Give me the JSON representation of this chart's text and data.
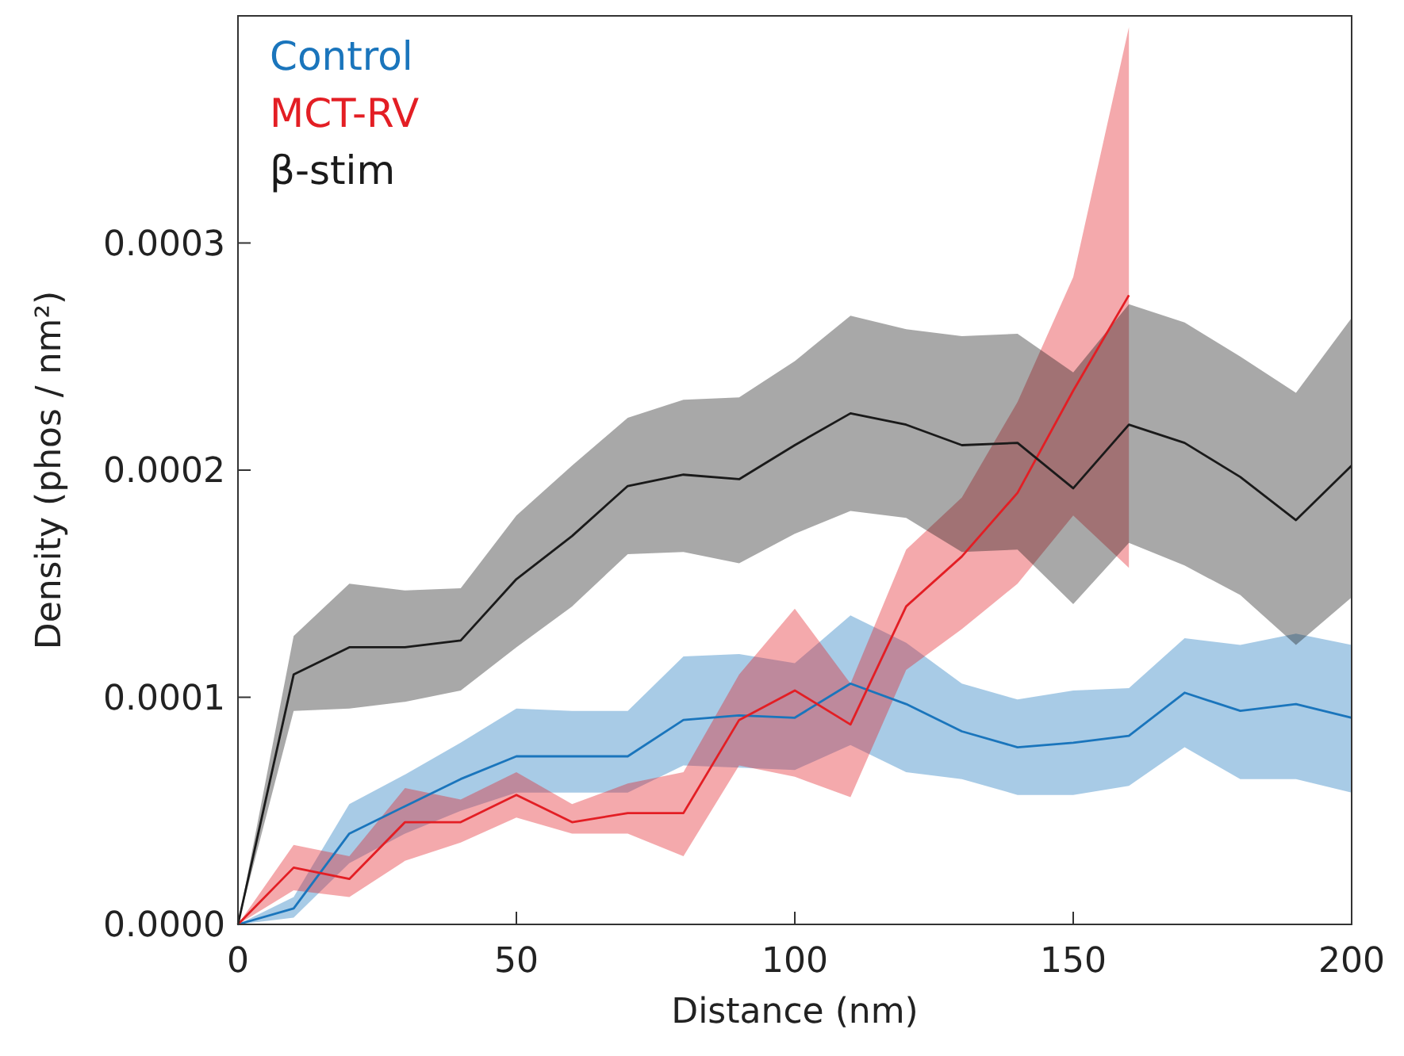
{
  "chart_data": {
    "type": "line",
    "xlabel": "Distance (nm)",
    "ylabel": "Density (phos / nm²)",
    "xlim": [
      0,
      200
    ],
    "xticks": [
      0,
      50,
      100,
      150,
      200
    ],
    "ylim": [
      0,
      0.0004
    ],
    "yticks": [
      {
        "value": 0,
        "label": "0.0000"
      },
      {
        "value": 0.0001,
        "label": "0.0001"
      },
      {
        "value": 0.0002,
        "label": "0.0002"
      },
      {
        "value": 0.0003,
        "label": "0.0003"
      }
    ],
    "legend": "top left",
    "grid": false,
    "marker": "none",
    "line_style": "solid",
    "series": [
      {
        "name": "Control",
        "color": "#1a75bc",
        "x": [
          0,
          10,
          20,
          30,
          40,
          50,
          60,
          70,
          80,
          90,
          100,
          110,
          120,
          130,
          140,
          150,
          160,
          170,
          180,
          190,
          200
        ],
        "values": [
          0,
          7e-06,
          4e-05,
          5.2e-05,
          6.4e-05,
          7.4e-05,
          7.4e-05,
          7.4e-05,
          9e-05,
          9.2e-05,
          9.1e-05,
          0.000106,
          9.7e-05,
          8.5e-05,
          7.8e-05,
          8e-05,
          8.3e-05,
          0.000102,
          9.4e-05,
          9.7e-05,
          9.1e-05
        ],
        "upper": [
          0,
          1.2e-05,
          5.3e-05,
          6.6e-05,
          8e-05,
          9.5e-05,
          9.4e-05,
          9.4e-05,
          0.000118,
          0.000119,
          0.000115,
          0.000136,
          0.000124,
          0.000106,
          9.9e-05,
          0.000103,
          0.000104,
          0.000126,
          0.000123,
          0.000128,
          0.000123
        ],
        "lower": [
          0,
          3e-06,
          2.7e-05,
          4e-05,
          5e-05,
          5.8e-05,
          5.8e-05,
          5.8e-05,
          7e-05,
          6.9e-05,
          6.8e-05,
          7.9e-05,
          6.7e-05,
          6.4e-05,
          5.7e-05,
          5.7e-05,
          6.1e-05,
          7.8e-05,
          6.4e-05,
          6.4e-05,
          5.8e-05
        ]
      },
      {
        "name": "MCT-RV",
        "color": "#e31e24",
        "x": [
          0,
          10,
          20,
          30,
          40,
          50,
          60,
          70,
          80,
          90,
          100,
          110,
          120,
          130,
          140,
          150,
          160
        ],
        "values": [
          0,
          2.5e-05,
          2e-05,
          4.5e-05,
          4.5e-05,
          5.7e-05,
          4.5e-05,
          4.9e-05,
          4.9e-05,
          9e-05,
          0.000103,
          8.8e-05,
          0.00014,
          0.000162,
          0.00019,
          0.000235,
          0.000277
        ],
        "upper": [
          0,
          3.5e-05,
          3e-05,
          6e-05,
          5.5e-05,
          6.7e-05,
          5.3e-05,
          6.2e-05,
          6.7e-05,
          0.00011,
          0.000139,
          0.000106,
          0.000165,
          0.000188,
          0.00023,
          0.000285,
          0.000395
        ],
        "lower": [
          0,
          1.5e-05,
          1.2e-05,
          2.8e-05,
          3.6e-05,
          4.7e-05,
          4e-05,
          4e-05,
          3e-05,
          7e-05,
          6.5e-05,
          5.6e-05,
          0.000112,
          0.00013,
          0.00015,
          0.00018,
          0.000157
        ]
      },
      {
        "name": "β-stim",
        "color": "#1a1a1a",
        "x": [
          0,
          10,
          20,
          30,
          40,
          50,
          60,
          70,
          80,
          90,
          100,
          110,
          120,
          130,
          140,
          150,
          160,
          170,
          180,
          190,
          200
        ],
        "values": [
          0,
          0.00011,
          0.000122,
          0.000122,
          0.000125,
          0.000152,
          0.000171,
          0.000193,
          0.000198,
          0.000196,
          0.000211,
          0.000225,
          0.00022,
          0.000211,
          0.000212,
          0.000192,
          0.00022,
          0.000212,
          0.000197,
          0.000178,
          0.000202
        ],
        "upper": [
          0,
          0.000127,
          0.00015,
          0.000147,
          0.000148,
          0.00018,
          0.000202,
          0.000223,
          0.000231,
          0.000232,
          0.000248,
          0.000268,
          0.000262,
          0.000259,
          0.00026,
          0.000243,
          0.000273,
          0.000265,
          0.00025,
          0.000234,
          0.000267
        ],
        "lower": [
          0,
          9.4e-05,
          9.5e-05,
          9.8e-05,
          0.000103,
          0.000122,
          0.00014,
          0.000163,
          0.000164,
          0.000159,
          0.000172,
          0.000182,
          0.000179,
          0.000164,
          0.000165,
          0.000141,
          0.000168,
          0.000158,
          0.000145,
          0.000123,
          0.000144
        ]
      }
    ]
  }
}
